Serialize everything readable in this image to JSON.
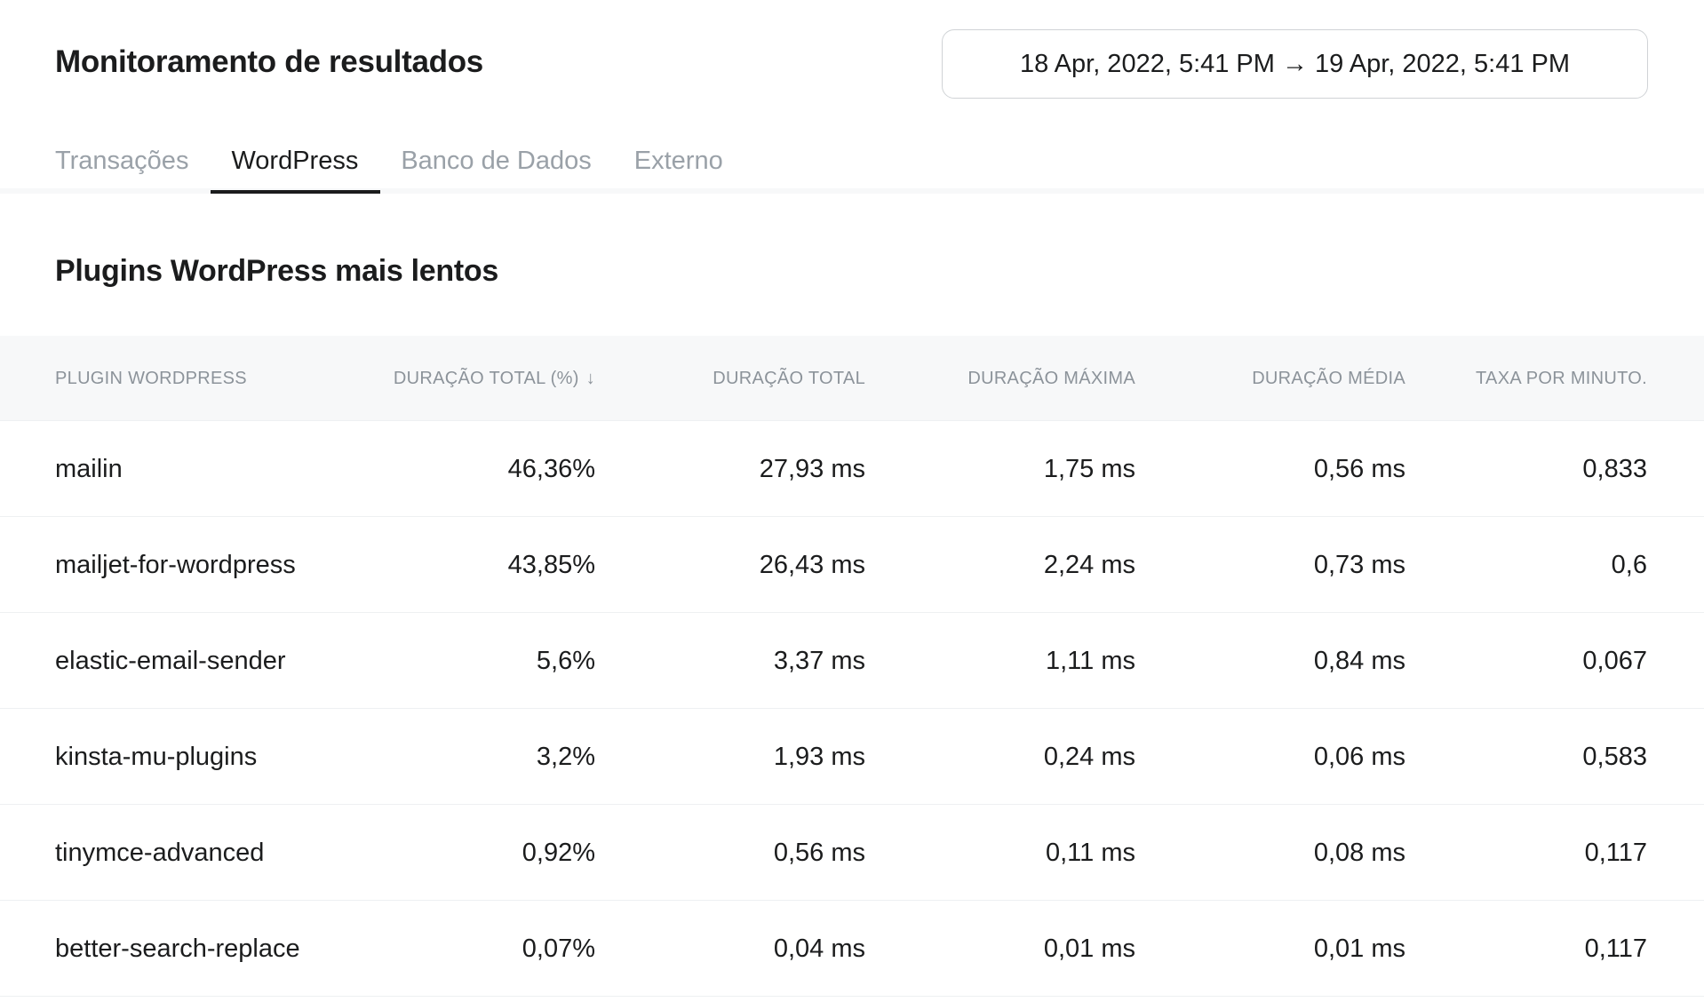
{
  "header": {
    "title": "Monitoramento de resultados",
    "date_range": "18 Apr, 2022, 5:41 PM → 19 Apr, 2022, 5:41 PM"
  },
  "tabs": [
    {
      "label": "Transações",
      "active": false
    },
    {
      "label": "WordPress",
      "active": true
    },
    {
      "label": "Banco de Dados",
      "active": false
    },
    {
      "label": "Externo",
      "active": false
    }
  ],
  "section": {
    "title": "Plugins WordPress mais lentos"
  },
  "table": {
    "columns": [
      "PLUGIN WORDPRESS",
      "DURAÇÃO TOTAL (%)",
      "DURAÇÃO TOTAL",
      "DURAÇÃO MÁXIMA",
      "DURAÇÃO MÉDIA",
      "TAXA POR MINUTO."
    ],
    "sort_icon": "arrow-down-icon",
    "sort_glyph": "↓",
    "rows": [
      [
        "mailin",
        "46,36%",
        "27,93 ms",
        "1,75 ms",
        "0,56 ms",
        "0,833"
      ],
      [
        "mailjet-for-wordpress",
        "43,85%",
        "26,43 ms",
        "2,24 ms",
        "0,73 ms",
        "0,6"
      ],
      [
        "elastic-email-sender",
        "5,6%",
        "3,37 ms",
        "1,11 ms",
        "0,84 ms",
        "0,067"
      ],
      [
        "kinsta-mu-plugins",
        "3,2%",
        "1,93 ms",
        "0,24 ms",
        "0,06 ms",
        "0,583"
      ],
      [
        "tinymce-advanced",
        "0,92%",
        "0,56 ms",
        "0,11 ms",
        "0,08 ms",
        "0,117"
      ],
      [
        "better-search-replace",
        "0,07%",
        "0,04 ms",
        "0,01 ms",
        "0,01 ms",
        "0,117"
      ]
    ]
  }
}
